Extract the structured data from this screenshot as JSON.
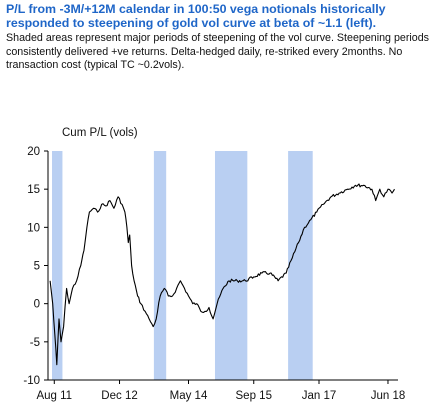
{
  "title": "P/L from -3M/+12M calendar in 100:50 vega notionals historically responded to steepening of gold vol curve at beta of ~1.1 (left).",
  "subtitle": "Shaded areas represent major periods of steepening of the vol curve. Steepening periods consistently delivered +ve returns. Delta-hedged daily, re-striked every 2months. No transaction cost (typical TC ~0.2vols).",
  "colors": {
    "title": "#1f66c8",
    "shade": "#b9cff2",
    "line": "#000000"
  },
  "chart_data": {
    "type": "line",
    "ylabel": "Cum P/L (vols)",
    "xlabel": "",
    "ylim": [
      -10,
      20
    ],
    "yticks": [
      -10,
      -5,
      0,
      5,
      10,
      15,
      20
    ],
    "xlim": [
      "2011-06-15",
      "2018-08-15"
    ],
    "xticks": [
      {
        "label": "Aug 11",
        "date": "2011-08-01"
      },
      {
        "label": "Dec 12",
        "date": "2012-12-01"
      },
      {
        "label": "May 14",
        "date": "2014-05-01"
      },
      {
        "label": "Sep 15",
        "date": "2015-09-01"
      },
      {
        "label": "Jan 17",
        "date": "2017-01-01"
      },
      {
        "label": "Jun 18",
        "date": "2018-06-01"
      }
    ],
    "grid": false,
    "shaded_periods": [
      {
        "start": "2011-07-15",
        "end": "2011-10-01"
      },
      {
        "start": "2013-08-15",
        "end": "2013-11-15"
      },
      {
        "start": "2014-11-15",
        "end": "2015-07-15"
      },
      {
        "start": "2016-05-15",
        "end": "2016-11-15"
      }
    ],
    "series": [
      {
        "points": [
          [
            "2011-07-01",
            3.0
          ],
          [
            "2011-07-20",
            0.0
          ],
          [
            "2011-08-05",
            -4.0
          ],
          [
            "2011-08-20",
            -8.0
          ],
          [
            "2011-09-05",
            -2.0
          ],
          [
            "2011-09-20",
            -5.0
          ],
          [
            "2011-10-10",
            -3.0
          ],
          [
            "2011-11-01",
            2.0
          ],
          [
            "2011-11-20",
            0.0
          ],
          [
            "2011-12-15",
            2.0
          ],
          [
            "2012-01-15",
            3.0
          ],
          [
            "2012-02-15",
            5.0
          ],
          [
            "2012-03-10",
            7.0
          ],
          [
            "2012-04-01",
            10.0
          ],
          [
            "2012-04-20",
            12.0
          ],
          [
            "2012-05-20",
            12.5
          ],
          [
            "2012-06-20",
            12.0
          ],
          [
            "2012-07-20",
            13.0
          ],
          [
            "2012-08-20",
            12.8
          ],
          [
            "2012-09-20",
            13.5
          ],
          [
            "2012-10-20",
            12.5
          ],
          [
            "2012-11-20",
            14.0
          ],
          [
            "2012-12-20",
            13.0
          ],
          [
            "2013-01-10",
            12.0
          ],
          [
            "2013-01-25",
            10.0
          ],
          [
            "2013-02-05",
            8.0
          ],
          [
            "2013-02-15",
            9.0
          ],
          [
            "2013-03-01",
            5.0
          ],
          [
            "2013-03-20",
            3.0
          ],
          [
            "2013-04-15",
            1.0
          ],
          [
            "2013-05-10",
            0.0
          ],
          [
            "2013-06-10",
            -1.0
          ],
          [
            "2013-07-10",
            -2.0
          ],
          [
            "2013-08-10",
            -3.0
          ],
          [
            "2013-09-01",
            -2.0
          ],
          [
            "2013-10-01",
            1.0
          ],
          [
            "2013-11-01",
            2.0
          ],
          [
            "2013-12-01",
            1.0
          ],
          [
            "2014-01-01",
            1.0
          ],
          [
            "2014-02-01",
            2.0
          ],
          [
            "2014-03-01",
            3.0
          ],
          [
            "2014-04-01",
            2.0
          ],
          [
            "2014-05-01",
            1.0
          ],
          [
            "2014-06-01",
            0.0
          ],
          [
            "2014-07-01",
            0.0
          ],
          [
            "2014-08-01",
            -1.0
          ],
          [
            "2014-09-01",
            -1.0
          ],
          [
            "2014-10-01",
            -0.5
          ],
          [
            "2014-11-01",
            -2.0
          ],
          [
            "2014-12-01",
            0.0
          ],
          [
            "2015-01-15",
            2.0
          ],
          [
            "2015-03-01",
            3.0
          ],
          [
            "2015-05-01",
            3.0
          ],
          [
            "2015-07-01",
            3.0
          ],
          [
            "2015-09-01",
            3.5
          ],
          [
            "2015-11-01",
            4.0
          ],
          [
            "2016-01-01",
            4.0
          ],
          [
            "2016-03-01",
            3.0
          ],
          [
            "2016-05-01",
            4.0
          ],
          [
            "2016-06-15",
            6.0
          ],
          [
            "2016-08-01",
            8.0
          ],
          [
            "2016-09-15",
            10.0
          ],
          [
            "2016-11-01",
            11.0
          ],
          [
            "2016-12-15",
            12.0
          ],
          [
            "2017-02-01",
            13.0
          ],
          [
            "2017-04-01",
            14.0
          ],
          [
            "2017-06-01",
            14.5
          ],
          [
            "2017-08-01",
            15.0
          ],
          [
            "2017-10-01",
            15.5
          ],
          [
            "2017-12-01",
            15.5
          ],
          [
            "2018-02-01",
            15.0
          ],
          [
            "2018-03-01",
            13.5
          ],
          [
            "2018-04-01",
            15.0
          ],
          [
            "2018-05-01",
            14.0
          ],
          [
            "2018-06-01",
            15.0
          ],
          [
            "2018-07-01",
            14.5
          ],
          [
            "2018-07-20",
            15.0
          ]
        ]
      }
    ]
  }
}
